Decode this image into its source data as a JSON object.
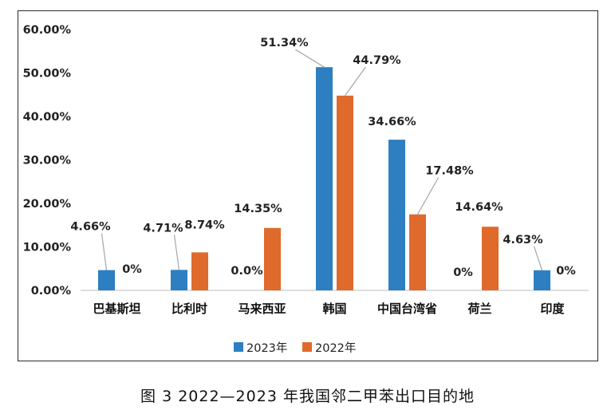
{
  "chart_data": {
    "type": "bar",
    "categories": [
      "巴基斯坦",
      "比利时",
      "马来西亚",
      "韩国",
      "中国台湾省",
      "荷兰",
      "印度"
    ],
    "series": [
      {
        "name": "2023年",
        "color": "#2e7fc1",
        "values": [
          4.66,
          4.71,
          0.0,
          51.34,
          34.66,
          0,
          4.63
        ],
        "labels": [
          "4.66%",
          "4.71%",
          "0.0%",
          "51.34%",
          "34.66%",
          "0%",
          "4.63%"
        ]
      },
      {
        "name": "2022年",
        "color": "#e06a2b",
        "values": [
          0,
          8.74,
          14.35,
          44.79,
          17.48,
          14.64,
          0
        ],
        "labels": [
          "0%",
          "8.74%",
          "14.35%",
          "44.79%",
          "17.48%",
          "14.64%",
          "0%"
        ]
      }
    ],
    "yticks": [
      "0.00%",
      "10.00%",
      "20.00%",
      "30.00%",
      "40.00%",
      "50.00%",
      "60.00%"
    ],
    "ylim": [
      0,
      60
    ],
    "grid": false,
    "legend": "bottom"
  },
  "caption": "图 3  2022—2023 年我国邻二甲苯出口目的地"
}
